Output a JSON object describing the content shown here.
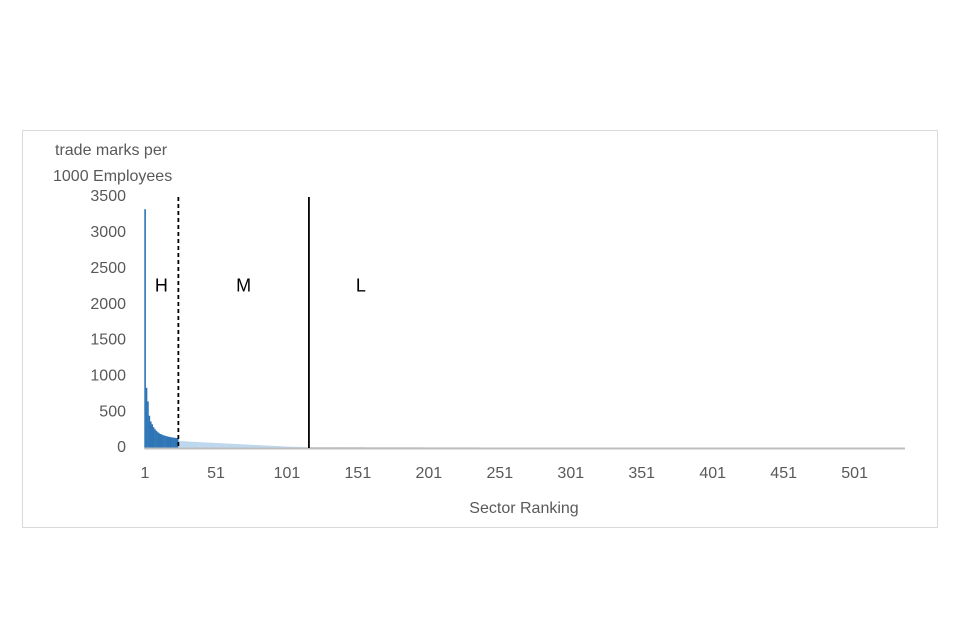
{
  "chart_data": {
    "type": "bar",
    "ylabel": [
      "trade marks per",
      "1000 Employees"
    ],
    "xlabel": "Sector Ranking",
    "xlim": [
      0.5,
      536.5
    ],
    "xticks": [
      1,
      51,
      101,
      151,
      201,
      251,
      301,
      351,
      401,
      451,
      501
    ],
    "ylim": [
      0,
      3500
    ],
    "yticks": [
      0,
      500,
      1000,
      1500,
      2000,
      2500,
      3000,
      3500
    ],
    "bands": [
      {
        "label": "H",
        "end": 24.5,
        "color": "#2e75b6",
        "divider": "dashed"
      },
      {
        "label": "M",
        "end": 116.5,
        "color": "#bdd7ee",
        "divider": "solid"
      },
      {
        "label": "L",
        "end": 536.5,
        "color": "#a6a6a6"
      }
    ],
    "values": [
      3330,
      840,
      650,
      450,
      370,
      330,
      290,
      260,
      240,
      220,
      205,
      195,
      185,
      178,
      172,
      166,
      160,
      155,
      151,
      148,
      145,
      142,
      139,
      136,
      100,
      98,
      96,
      95,
      94,
      92,
      90,
      89,
      88,
      87,
      86,
      85,
      84,
      83,
      82,
      81,
      80,
      79,
      78,
      77,
      76,
      75,
      74,
      73,
      72,
      71,
      70,
      69,
      68,
      67,
      66,
      65,
      64,
      63,
      62,
      61,
      60,
      59,
      58,
      57,
      56,
      55,
      54,
      53,
      52,
      51,
      50,
      49,
      48,
      47,
      46,
      45,
      44,
      43,
      42,
      41,
      40,
      39,
      38,
      37,
      36,
      35,
      34,
      33,
      32,
      31,
      30,
      29,
      28,
      27,
      26,
      25,
      24,
      23,
      22,
      21,
      20,
      19,
      18,
      17,
      16,
      16,
      15,
      15,
      14,
      14,
      13,
      13,
      12,
      12,
      11,
      11,
      10,
      10,
      10,
      10,
      10,
      10,
      10,
      10,
      10,
      10,
      10,
      10,
      10,
      10,
      10,
      10,
      10,
      10,
      10,
      10,
      10,
      10,
      10,
      10,
      10,
      10,
      10,
      10,
      10,
      10,
      10,
      10,
      10,
      10,
      10,
      10,
      10,
      10,
      10,
      10,
      9,
      9,
      9,
      9,
      9,
      9,
      9,
      9,
      9,
      9,
      9,
      9,
      9,
      9,
      9,
      9,
      9,
      9,
      9,
      9,
      9,
      9,
      9,
      9,
      9,
      9,
      9,
      9,
      9,
      9,
      9,
      9,
      9,
      9,
      9,
      9,
      9,
      9,
      9,
      9,
      8,
      8,
      8,
      8,
      8,
      8,
      8,
      8,
      8,
      8,
      8,
      8,
      8,
      8,
      8,
      8,
      8,
      8,
      8,
      8,
      8,
      8,
      8,
      8,
      8,
      8,
      8,
      8,
      8,
      8,
      8,
      8,
      8,
      8,
      8,
      8,
      8,
      8,
      8,
      8,
      7,
      7,
      7,
      7,
      7,
      7,
      7,
      7,
      7,
      7,
      7,
      7,
      7,
      7,
      7,
      7,
      7,
      7,
      7,
      7,
      7,
      7,
      7,
      7,
      7,
      7,
      7,
      7,
      7,
      7,
      7,
      7,
      7,
      7,
      7,
      7,
      7,
      7,
      7,
      7,
      6,
      6,
      6,
      6,
      6,
      6,
      6,
      6,
      6,
      6,
      6,
      6,
      6,
      6,
      6,
      6,
      6,
      6,
      6,
      6,
      6,
      6,
      6,
      6,
      6,
      6,
      6,
      6,
      6,
      6,
      6,
      6,
      6,
      6,
      6,
      6,
      6,
      6,
      6,
      6,
      5,
      5,
      5,
      5,
      5,
      5,
      5,
      5,
      5,
      5,
      5,
      5,
      5,
      5,
      5,
      5,
      5,
      5,
      5,
      5,
      5,
      5,
      5,
      5,
      5,
      5,
      5,
      5,
      5,
      5,
      5,
      5,
      5,
      5,
      5,
      5,
      5,
      5,
      5,
      5,
      4,
      4,
      4,
      4,
      4,
      4,
      4,
      4,
      4,
      4,
      4,
      4,
      4,
      4,
      4,
      4,
      4,
      4,
      4,
      4,
      4,
      4,
      4,
      4,
      4,
      4,
      4,
      4,
      4,
      4,
      4,
      4,
      4,
      4,
      4,
      4,
      4,
      4,
      4,
      4,
      3,
      3,
      3,
      3,
      3,
      3,
      3,
      3,
      3,
      3,
      3,
      3,
      3,
      3,
      3,
      3,
      3,
      3,
      3,
      3,
      3,
      3,
      3,
      3,
      3,
      3,
      3,
      3,
      3,
      3,
      3,
      3,
      3,
      3,
      3,
      3,
      3,
      3,
      3,
      3,
      2,
      2,
      2,
      2,
      2,
      2,
      2,
      2,
      2,
      2,
      2,
      2,
      2,
      2,
      2,
      2,
      2,
      2,
      2,
      2,
      2,
      2,
      2,
      2,
      2,
      2,
      2,
      2,
      2,
      2,
      2,
      2,
      2,
      2,
      2,
      2,
      2,
      2,
      2,
      2,
      1,
      1,
      1,
      1,
      1,
      1,
      1,
      1,
      1,
      1,
      1,
      1,
      1,
      1,
      1,
      1,
      1,
      1,
      1,
      1,
      1,
      1,
      1,
      1,
      1,
      1,
      1,
      1,
      1,
      1,
      1,
      1,
      1,
      1,
      1,
      1,
      1,
      1,
      1,
      1,
      0,
      0,
      0,
      0,
      0,
      0,
      0,
      0,
      0,
      0,
      0,
      0,
      0,
      0,
      0,
      0,
      0,
      0,
      0,
      0
    ]
  }
}
